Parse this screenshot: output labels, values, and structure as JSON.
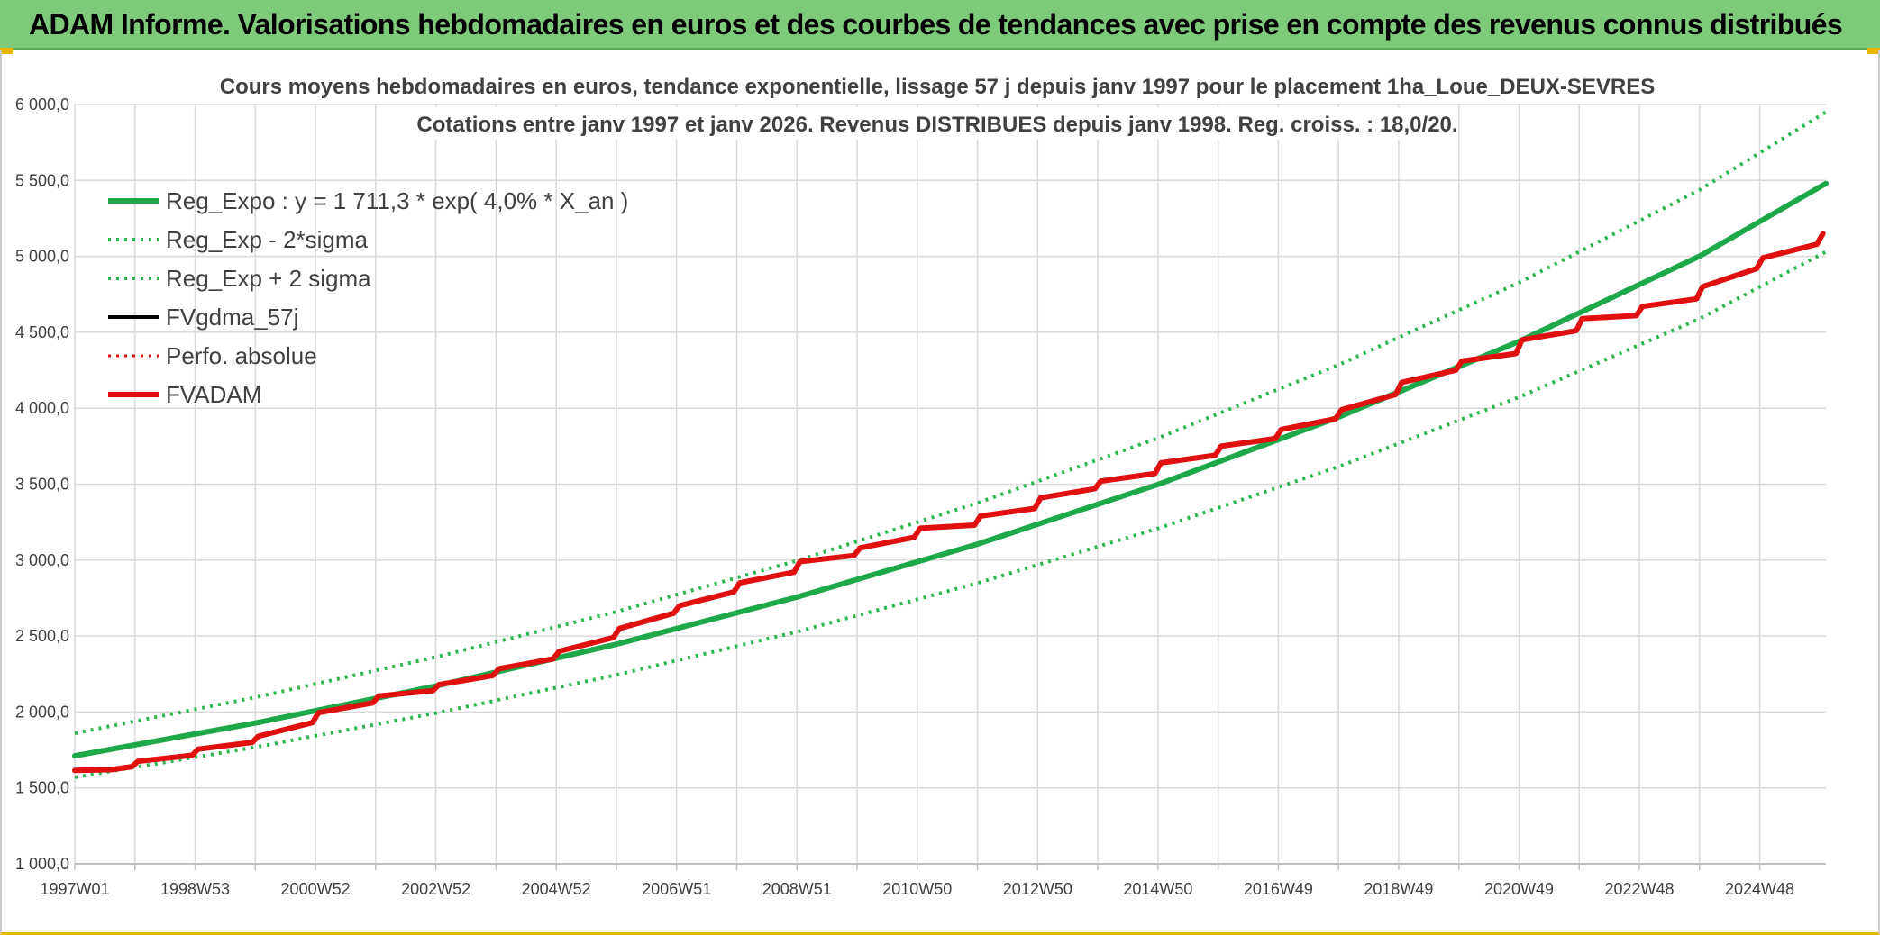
{
  "banner": {
    "title": "ADAM Informe. Valorisations hebdomadaires en euros et des courbes de tendances avec prise en compte des revenus connus distribués"
  },
  "colors": {
    "banner_bg": "#7ec97a",
    "regression": "#1fa84a",
    "sigma_bands": "#2db54f",
    "fvgdma": "#000000",
    "perfo": "#e01010",
    "fvadam": "#e01010",
    "grid": "#d9d9d9"
  },
  "chart_data": {
    "type": "line",
    "title": [
      "Cours moyens hebdomadaires en euros, tendance exponentielle, lissage 57 j depuis janv 1997 pour le placement 1ha_Loue_DEUX-SEVRES",
      "Cotations entre janv 1997 et janv 2026. Revenus DISTRIBUES depuis janv 1998. Reg. croiss. : 18,0/20."
    ],
    "xlabel": "",
    "ylabel": "",
    "ylim": [
      1000,
      6000
    ],
    "yticks": [
      1000,
      1500,
      2000,
      2500,
      3000,
      3500,
      4000,
      4500,
      5000,
      5500,
      6000
    ],
    "ytick_labels": [
      "1 000,0",
      "1 500,0",
      "2 000,0",
      "2 500,0",
      "3 000,0",
      "3 500,0",
      "4 000,0",
      "4 500,0",
      "5 000,0",
      "5 500,0",
      "6 000,0"
    ],
    "xlim": [
      1997.0,
      2026.1
    ],
    "xticks": [
      1997.0,
      1998.0,
      1999.0,
      2000.0,
      2001.0,
      2002.0,
      2003.0,
      2004.0,
      2005.0,
      2006.0,
      2007.0,
      2008.0,
      2009.0,
      2010.0,
      2011.0,
      2012.0,
      2013.0,
      2014.0,
      2015.0,
      2016.0,
      2017.0,
      2018.0,
      2019.0,
      2020.0,
      2021.0,
      2022.0,
      2023.0,
      2024.0,
      2025.0
    ],
    "xtick_labels": [
      {
        "x": 1997.0,
        "label": "1997W01"
      },
      {
        "x": 1999.0,
        "label": "1998W53"
      },
      {
        "x": 2001.0,
        "label": "2000W52"
      },
      {
        "x": 2003.0,
        "label": "2002W52"
      },
      {
        "x": 2005.0,
        "label": "2004W52"
      },
      {
        "x": 2007.0,
        "label": "2006W51"
      },
      {
        "x": 2009.0,
        "label": "2008W51"
      },
      {
        "x": 2011.0,
        "label": "2010W50"
      },
      {
        "x": 2013.0,
        "label": "2012W50"
      },
      {
        "x": 2015.0,
        "label": "2014W50"
      },
      {
        "x": 2017.0,
        "label": "2016W49"
      },
      {
        "x": 2019.0,
        "label": "2018W49"
      },
      {
        "x": 2021.0,
        "label": "2020W49"
      },
      {
        "x": 2023.0,
        "label": "2022W48"
      },
      {
        "x": 2025.0,
        "label": "2024W48"
      }
    ],
    "grid": true,
    "legend_position": "top-left",
    "series": [
      {
        "name": "Reg_Expo : y = 1 711,3 * exp( 4,0% *  X_an )",
        "style": "solid",
        "color": "#1fa84a",
        "width": 6,
        "x": [
          1997.0,
          2000.0,
          2003.0,
          2006.0,
          2009.0,
          2012.0,
          2015.0,
          2018.0,
          2021.0,
          2024.0,
          2026.1
        ],
        "y": [
          1711,
          1927,
          2171,
          2446,
          2756,
          3105,
          3498,
          3941,
          4440,
          5001,
          5480
        ]
      },
      {
        "name": "Reg_Exp - 2*sigma",
        "style": "dotted",
        "color": "#2db54f",
        "width": 4,
        "x": [
          1997.0,
          2000.0,
          2003.0,
          2006.0,
          2009.0,
          2012.0,
          2015.0,
          2018.0,
          2021.0,
          2024.0,
          2026.1
        ],
        "y": [
          1570,
          1768,
          1992,
          2244,
          2528,
          2848,
          3209,
          3615,
          4073,
          4589,
          5030
        ]
      },
      {
        "name": "Reg_Exp + 2 sigma",
        "style": "dotted",
        "color": "#2db54f",
        "width": 4,
        "x": [
          1997.0,
          2000.0,
          2003.0,
          2006.0,
          2009.0,
          2012.0,
          2015.0,
          2018.0,
          2021.0,
          2024.0,
          2026.1
        ],
        "y": [
          1860,
          2096,
          2361,
          2660,
          2996,
          3376,
          3803,
          4285,
          4827,
          5438,
          5950
        ]
      },
      {
        "name": "FVgdma_57j",
        "style": "solid",
        "color": "#000000",
        "width": 4,
        "x": [
          1997.0,
          1997.6,
          1997.95,
          1998.05,
          1998.95,
          1999.05,
          1999.95,
          2000.05,
          2000.95,
          2001.05,
          2001.95,
          2002.05,
          2002.95,
          2003.05,
          2003.95,
          2004.05,
          2004.95,
          2005.05,
          2005.95,
          2006.05,
          2006.95,
          2007.05,
          2007.95,
          2008.05,
          2008.95,
          2009.05,
          2009.95,
          2010.05,
          2010.95,
          2011.05,
          2011.95,
          2012.05,
          2012.95,
          2013.05,
          2013.95,
          2014.05,
          2014.95,
          2015.05,
          2015.95,
          2016.05,
          2016.95,
          2017.05,
          2017.95,
          2018.05,
          2018.95,
          2019.05,
          2019.95,
          2020.05,
          2020.95,
          2021.05,
          2021.95,
          2022.05,
          2022.95,
          2023.05,
          2023.95,
          2024.05,
          2024.95,
          2025.05,
          2025.95,
          2026.05
        ],
        "y": [
          1615,
          1620,
          1640,
          1675,
          1715,
          1755,
          1800,
          1840,
          1930,
          1995,
          2060,
          2105,
          2140,
          2180,
          2240,
          2285,
          2350,
          2400,
          2490,
          2550,
          2650,
          2700,
          2790,
          2850,
          2920,
          2990,
          3030,
          3080,
          3150,
          3210,
          3230,
          3290,
          3340,
          3410,
          3470,
          3520,
          3570,
          3640,
          3690,
          3750,
          3800,
          3860,
          3930,
          3990,
          4090,
          4170,
          4250,
          4310,
          4360,
          4450,
          4510,
          4590,
          4610,
          4670,
          4720,
          4800,
          4920,
          4990,
          5080,
          5150
        ]
      },
      {
        "name": "Perfo. absolue",
        "style": "dotted",
        "color": "#e01010",
        "width": 3,
        "x": [
          1997.0,
          1997.6,
          1997.95,
          1998.05,
          1998.95,
          1999.05,
          1999.95,
          2000.05,
          2000.95,
          2001.05,
          2001.95,
          2002.05,
          2002.95,
          2003.05,
          2003.95,
          2004.05,
          2004.95,
          2005.05,
          2005.95,
          2006.05,
          2006.95,
          2007.05,
          2007.95,
          2008.05,
          2008.95,
          2009.05,
          2009.95,
          2010.05,
          2010.95,
          2011.05,
          2011.95,
          2012.05,
          2012.95,
          2013.05,
          2013.95,
          2014.05,
          2014.95,
          2015.05,
          2015.95,
          2016.05,
          2016.95,
          2017.05,
          2017.95,
          2018.05,
          2018.95,
          2019.05,
          2019.95,
          2020.05,
          2020.95,
          2021.05,
          2021.95,
          2022.05,
          2022.95,
          2023.05,
          2023.95,
          2024.05,
          2024.95,
          2025.05,
          2025.95,
          2026.05
        ],
        "y": [
          1615,
          1620,
          1640,
          1675,
          1715,
          1755,
          1800,
          1840,
          1930,
          1995,
          2060,
          2105,
          2140,
          2180,
          2240,
          2285,
          2350,
          2400,
          2490,
          2550,
          2650,
          2700,
          2790,
          2850,
          2920,
          2990,
          3030,
          3080,
          3150,
          3210,
          3230,
          3290,
          3340,
          3410,
          3470,
          3520,
          3570,
          3640,
          3690,
          3750,
          3800,
          3860,
          3930,
          3990,
          4090,
          4170,
          4250,
          4310,
          4360,
          4450,
          4510,
          4590,
          4610,
          4670,
          4720,
          4800,
          4920,
          4990,
          5080,
          5150
        ]
      },
      {
        "name": "FVADAM",
        "style": "solid",
        "color": "#e01010",
        "width": 6,
        "x": [
          1997.0,
          1997.6,
          1997.95,
          1998.05,
          1998.95,
          1999.05,
          1999.95,
          2000.05,
          2000.95,
          2001.05,
          2001.95,
          2002.05,
          2002.95,
          2003.05,
          2003.95,
          2004.05,
          2004.95,
          2005.05,
          2005.95,
          2006.05,
          2006.95,
          2007.05,
          2007.95,
          2008.05,
          2008.95,
          2009.05,
          2009.95,
          2010.05,
          2010.95,
          2011.05,
          2011.95,
          2012.05,
          2012.95,
          2013.05,
          2013.95,
          2014.05,
          2014.95,
          2015.05,
          2015.95,
          2016.05,
          2016.95,
          2017.05,
          2017.95,
          2018.05,
          2018.95,
          2019.05,
          2019.95,
          2020.05,
          2020.95,
          2021.05,
          2021.95,
          2022.05,
          2022.95,
          2023.05,
          2023.95,
          2024.05,
          2024.95,
          2025.05,
          2025.95,
          2026.05
        ],
        "y": [
          1615,
          1620,
          1640,
          1675,
          1715,
          1755,
          1800,
          1840,
          1930,
          1995,
          2060,
          2105,
          2140,
          2180,
          2240,
          2285,
          2350,
          2400,
          2490,
          2550,
          2650,
          2700,
          2790,
          2850,
          2920,
          2990,
          3030,
          3080,
          3150,
          3210,
          3230,
          3290,
          3340,
          3410,
          3470,
          3520,
          3570,
          3640,
          3690,
          3750,
          3800,
          3860,
          3930,
          3990,
          4090,
          4170,
          4250,
          4310,
          4360,
          4450,
          4510,
          4590,
          4610,
          4670,
          4720,
          4800,
          4920,
          4990,
          5080,
          5150
        ]
      }
    ]
  }
}
